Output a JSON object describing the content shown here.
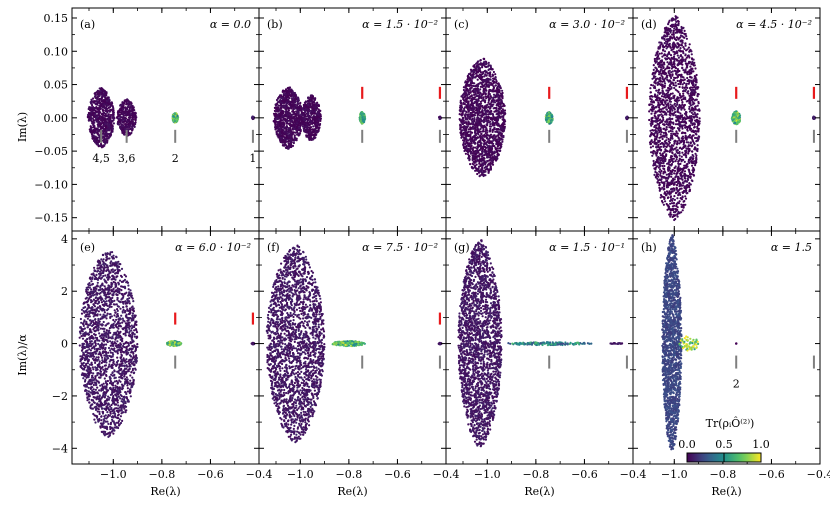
{
  "chart_data": [
    {
      "type": "scatter",
      "panel": "(a)",
      "alpha_label": "α = 0.0",
      "row": 0,
      "clusters": [
        {
          "cx": -1.05,
          "cy": 0.0,
          "rx": 0.055,
          "ry": 0.045,
          "n": 700,
          "color_value": 0.0
        },
        {
          "cx": -0.945,
          "cy": 0.0,
          "rx": 0.04,
          "ry": 0.028,
          "n": 350,
          "color_value": 0.0
        },
        {
          "cx": -0.745,
          "cy": 0.0,
          "rx": 0.012,
          "ry": 0.008,
          "n": 120,
          "color_value": 0.55
        },
        {
          "cx": -0.425,
          "cy": 0.0,
          "rx": 0.004,
          "ry": 0.002,
          "n": 25,
          "color_value": 0.05
        }
      ],
      "red_marker": null,
      "grey_markers": [
        -1.05,
        -0.945,
        -0.745,
        -0.425
      ],
      "marker_labels": [
        "4,5",
        "3,6",
        "2",
        "1"
      ]
    },
    {
      "type": "scatter",
      "panel": "(b)",
      "alpha_label": "α = 1.5 · 10⁻²",
      "row": 0,
      "clusters": [
        {
          "cx": -1.05,
          "cy": 0.0,
          "rx": 0.06,
          "ry": 0.047,
          "n": 900,
          "color_value": 0.0
        },
        {
          "cx": -0.955,
          "cy": 0.0,
          "rx": 0.04,
          "ry": 0.035,
          "n": 450,
          "color_value": 0.0
        },
        {
          "cx": -0.745,
          "cy": 0.0,
          "rx": 0.012,
          "ry": 0.009,
          "n": 120,
          "color_value": 0.55
        },
        {
          "cx": -0.425,
          "cy": 0.0,
          "rx": 0.004,
          "ry": 0.002,
          "n": 25,
          "color_value": 0.05
        }
      ],
      "red_marker": [
        -0.745,
        -0.425
      ],
      "grey_markers": [
        -0.745,
        -0.425
      ],
      "marker_labels": []
    },
    {
      "type": "scatter",
      "panel": "(c)",
      "alpha_label": "α = 3.0 · 10⁻²",
      "row": 0,
      "clusters": [
        {
          "cx": -1.02,
          "cy": 0.0,
          "rx": 0.095,
          "ry": 0.09,
          "n": 1700,
          "color_value": 0.0
        },
        {
          "cx": -0.745,
          "cy": 0.0,
          "rx": 0.015,
          "ry": 0.009,
          "n": 130,
          "color_value": 0.55
        },
        {
          "cx": -0.425,
          "cy": 0.0,
          "rx": 0.004,
          "ry": 0.002,
          "n": 25,
          "color_value": 0.05
        }
      ],
      "red_marker": [
        -0.745,
        -0.425
      ],
      "grey_markers": [
        -0.745,
        -0.425
      ],
      "marker_labels": []
    },
    {
      "type": "scatter",
      "panel": "(d)",
      "alpha_label": "α = 4.5 · 10⁻²",
      "row": 0,
      "clusters": [
        {
          "cx": -1.0,
          "cy": 0.0,
          "rx": 0.105,
          "ry": 0.155,
          "n": 2000,
          "color_value": 0.0
        },
        {
          "cx": -0.745,
          "cy": 0.0,
          "rx": 0.018,
          "ry": 0.01,
          "n": 140,
          "color_value": 0.6
        },
        {
          "cx": -0.425,
          "cy": 0.0,
          "rx": 0.004,
          "ry": 0.002,
          "n": 25,
          "color_value": 0.05
        }
      ],
      "red_marker": [
        -0.745,
        -0.425
      ],
      "grey_markers": [
        -0.745,
        -0.425
      ],
      "marker_labels": []
    },
    {
      "type": "scatter",
      "panel": "(e)",
      "alpha_label": "α = 6.0 · 10⁻²",
      "row": 1,
      "clusters": [
        {
          "cx": -1.02,
          "cy": 0.0,
          "rx": 0.12,
          "ry": 3.6,
          "n": 2000,
          "color_value": 0.05
        },
        {
          "cx": -0.75,
          "cy": 0.0,
          "rx": 0.03,
          "ry": 0.1,
          "n": 170,
          "color_value": 0.6
        },
        {
          "cx": -0.425,
          "cy": 0.0,
          "rx": 0.006,
          "ry": 0.03,
          "n": 30,
          "color_value": 0.05
        }
      ],
      "red_marker": [
        -0.745,
        -0.425
      ],
      "grey_markers": [
        -0.745
      ],
      "marker_labels": []
    },
    {
      "type": "scatter",
      "panel": "(f)",
      "alpha_label": "α = 7.5 · 10⁻²",
      "row": 1,
      "clusters": [
        {
          "cx": -1.02,
          "cy": 0.0,
          "rx": 0.12,
          "ry": 3.8,
          "n": 2200,
          "color_value": 0.05
        },
        {
          "cx": -0.8,
          "cy": 0.0,
          "rx": 0.07,
          "ry": 0.1,
          "n": 200,
          "color_value": 0.6
        },
        {
          "cx": -0.425,
          "cy": 0.0,
          "rx": 0.006,
          "ry": 0.03,
          "n": 30,
          "color_value": 0.05
        }
      ],
      "red_marker": [
        -0.425
      ],
      "grey_markers": [
        -0.745,
        -0.425
      ],
      "marker_labels": []
    },
    {
      "type": "scatter",
      "panel": "(g)",
      "alpha_label": "α = 1.5 · 10⁻¹",
      "row": 1,
      "clusters": [
        {
          "cx": -1.03,
          "cy": 0.0,
          "rx": 0.09,
          "ry": 4.0,
          "n": 2200,
          "color_value": 0.05
        },
        {
          "cx": -0.75,
          "cy": 0.0,
          "rx": 0.18,
          "ry": 0.06,
          "n": 160,
          "color_value": 0.35
        },
        {
          "cx": -0.47,
          "cy": 0.0,
          "rx": 0.03,
          "ry": 0.02,
          "n": 25,
          "color_value": 0.05
        }
      ],
      "red_marker": null,
      "grey_markers": [
        -0.745,
        -0.425
      ],
      "marker_labels": []
    },
    {
      "type": "scatter",
      "panel": "(h)",
      "alpha_label": "α = 1.5",
      "row": 1,
      "clusters": [
        {
          "cx": -1.01,
          "cy": 0.0,
          "rx": 0.04,
          "ry": 4.2,
          "n": 1700,
          "color_value": 0.2
        },
        {
          "cx": -0.94,
          "cy": 0.0,
          "rx": 0.04,
          "ry": 0.3,
          "n": 60,
          "color_value": 0.7
        },
        {
          "cx": -0.745,
          "cy": 0.0,
          "rx": 0.002,
          "ry": 0.01,
          "n": 3,
          "color_value": 0.0
        }
      ],
      "red_marker": null,
      "grey_markers": [
        -0.745,
        -0.425
      ],
      "marker_labels": [
        "2"
      ]
    }
  ],
  "axes": {
    "xlim": [
      -1.17,
      -0.4
    ],
    "xticks": [
      -1.0,
      -0.8,
      -0.6,
      -0.4
    ],
    "xtick_labels": [
      "−1.0",
      "−0.8",
      "−0.6",
      "−0.4"
    ],
    "xlabel": "Re(λ)",
    "row0_ylim": [
      -0.17,
      0.165
    ],
    "row0_yticks": [
      0.15,
      0.1,
      0.05,
      0.0,
      -0.05,
      -0.1,
      -0.15
    ],
    "row0_ytick_labels": [
      "0.15",
      "0.10",
      "0.05",
      "0.00",
      "−0.05",
      "−0.10",
      "−0.15"
    ],
    "row0_ylabel": "Im(λ)",
    "row1_ylim": [
      -4.6,
      4.3
    ],
    "row1_yticks": [
      4,
      2,
      0,
      -2,
      -4
    ],
    "row1_ytick_labels": [
      "4",
      "2",
      "0",
      "−2",
      "−4"
    ],
    "row1_ylabel": "Im(λ)/α"
  },
  "colorbar": {
    "label": "Tr(ρᵢÔ⁽²⁾)",
    "tick_labels": [
      "0.0",
      "0.5",
      "1.0"
    ],
    "ticks": [
      0.0,
      0.5,
      1.0
    ],
    "colormap": "viridis"
  },
  "colors": {
    "red_marker": "#e8191c",
    "grey_marker": "#7f7f7f",
    "viridis_low": "#440154",
    "viridis_high": "#fde725"
  }
}
